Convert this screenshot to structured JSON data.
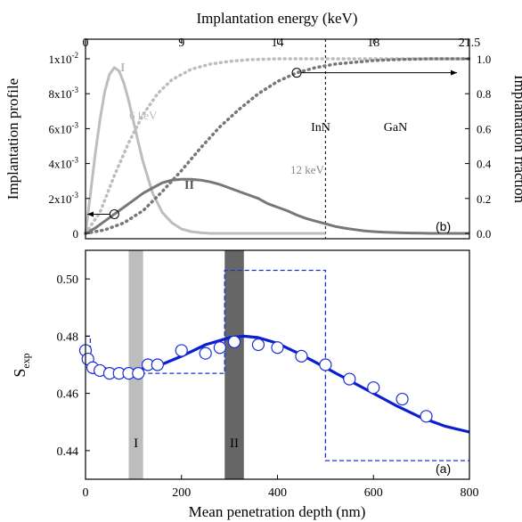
{
  "chart_data": [
    {
      "panel": "b",
      "type": "line",
      "panel_label": "(b)",
      "top_axis_label": "Implantation energy (keV)",
      "top_ticks": [
        "0",
        "9",
        "14",
        "18",
        "21.5"
      ],
      "ylabel": "Implantation profile",
      "ylabel_right": "Implantation fraction",
      "ylim": [
        0,
        0.01
      ],
      "ylim_right": [
        0,
        1
      ],
      "xlim": [
        0,
        800
      ],
      "left_ticks": [
        {
          "mant": "0",
          "exp": ""
        },
        {
          "mant": "2x10",
          "exp": "-3"
        },
        {
          "mant": "4x10",
          "exp": "-3"
        },
        {
          "mant": "6x10",
          "exp": "-3"
        },
        {
          "mant": "8x10",
          "exp": "-3"
        },
        {
          "mant": "1x10",
          "exp": "-2"
        }
      ],
      "right_ticks": [
        "0.0",
        "0.2",
        "0.4",
        "0.6",
        "0.8",
        "1.0"
      ],
      "region_labels": [
        "InN",
        "GaN"
      ],
      "interface_depth": 500,
      "series": [
        {
          "name": "I",
          "energy_label": "6 keV",
          "style": "solid",
          "color": "#bdbdbd",
          "x": [
            0,
            10,
            20,
            30,
            40,
            50,
            60,
            70,
            80,
            90,
            100,
            110,
            120,
            140,
            160,
            180,
            200,
            220,
            240,
            260,
            280,
            300,
            340,
            400,
            500
          ],
          "y": [
            0,
            0.0022,
            0.0045,
            0.0065,
            0.0081,
            0.0091,
            0.0095,
            0.0093,
            0.0086,
            0.0076,
            0.0064,
            0.0052,
            0.0041,
            0.0023,
            0.0012,
            0.0006,
            0.00025,
            0.0001,
            4e-05,
            0,
            0,
            0,
            0,
            0,
            0
          ]
        },
        {
          "name": "II",
          "energy_label": "12 keV",
          "style": "solid",
          "color": "#777777",
          "x": [
            0,
            20,
            40,
            60,
            80,
            100,
            120,
            140,
            160,
            180,
            200,
            220,
            240,
            260,
            280,
            300,
            320,
            340,
            360,
            380,
            400,
            420,
            440,
            460,
            480,
            500,
            520,
            540,
            560,
            580,
            600,
            620,
            640,
            660,
            680,
            700,
            720,
            740,
            760,
            780,
            800
          ],
          "y": [
            0,
            0.0003,
            0.0007,
            0.0011,
            0.0015,
            0.0019,
            0.0023,
            0.0026,
            0.0029,
            0.00305,
            0.0031,
            0.0031,
            0.00305,
            0.00295,
            0.0028,
            0.0026,
            0.0024,
            0.0022,
            0.002,
            0.0017,
            0.0015,
            0.0013,
            0.00105,
            0.00085,
            0.0007,
            0.00055,
            0.0004,
            0.0003,
            0.00022,
            0.00015,
            0.0001,
            7e-05,
            5e-05,
            3e-05,
            2e-05,
            1e-05,
            0,
            0,
            0,
            0,
            0
          ]
        },
        {
          "name": "6 keV fraction",
          "style": "dotted",
          "color": "#bdbdbd",
          "axis": "right",
          "x": [
            0,
            30,
            60,
            90,
            120,
            150,
            180,
            220,
            260,
            300,
            340,
            400,
            500,
            800
          ],
          "y": [
            0,
            0.12,
            0.33,
            0.52,
            0.68,
            0.8,
            0.88,
            0.94,
            0.97,
            0.985,
            0.995,
            1.0,
            1.0,
            1.0
          ]
        },
        {
          "name": "12 keV fraction",
          "style": "dotted",
          "color": "#777777",
          "axis": "right",
          "x": [
            0,
            40,
            80,
            120,
            160,
            200,
            240,
            280,
            320,
            360,
            400,
            440,
            480,
            520,
            560,
            600,
            640,
            680,
            720,
            760,
            800
          ],
          "y": [
            0,
            0.02,
            0.06,
            0.13,
            0.24,
            0.36,
            0.49,
            0.61,
            0.71,
            0.8,
            0.87,
            0.92,
            0.95,
            0.97,
            0.98,
            0.99,
            0.995,
            0.998,
            1.0,
            1.0,
            1.0
          ]
        }
      ]
    },
    {
      "panel": "a",
      "type": "scatter",
      "panel_label": "(a)",
      "xlabel": "Mean penetration depth (nm)",
      "ylabel": "S",
      "ylabel_sub": "exp",
      "xlim": [
        0,
        800
      ],
      "ylim": [
        0.43,
        0.51
      ],
      "xticks": [
        0,
        200,
        400,
        600,
        800
      ],
      "yticks": [
        "0.44",
        "0.46",
        "0.48",
        "0.50"
      ],
      "bands": [
        {
          "label": "I",
          "x": [
            90,
            120
          ],
          "color": "#bdbdbd"
        },
        {
          "label": "II",
          "x": [
            290,
            330
          ],
          "color": "#666666"
        }
      ],
      "points": {
        "x": [
          0,
          5,
          15,
          30,
          50,
          70,
          90,
          110,
          130,
          150,
          200,
          250,
          280,
          310,
          360,
          400,
          450,
          500,
          550,
          600,
          660,
          710
        ],
        "y": [
          0.475,
          0.472,
          0.469,
          0.468,
          0.467,
          0.467,
          0.467,
          0.467,
          0.47,
          0.47,
          0.475,
          0.474,
          0.476,
          0.478,
          0.477,
          0.476,
          0.473,
          0.47,
          0.465,
          0.462,
          0.458,
          0.452
        ]
      },
      "fit": {
        "x": [
          0,
          10,
          30,
          60,
          100,
          150,
          200,
          250,
          300,
          330,
          360,
          400,
          450,
          500,
          550,
          600,
          650,
          700,
          750,
          800
        ],
        "y": [
          0.475,
          0.471,
          0.469,
          0.468,
          0.468,
          0.4695,
          0.473,
          0.477,
          0.4795,
          0.48,
          0.4795,
          0.4775,
          0.4735,
          0.469,
          0.4645,
          0.46,
          0.4555,
          0.4515,
          0.4485,
          0.4465
        ]
      },
      "step_profile": {
        "x": [
          0,
          0,
          10,
          10,
          290,
          290,
          500,
          500,
          800
        ],
        "y": [
          0.48,
          0.48,
          0.48,
          0.467,
          0.467,
          0.503,
          0.503,
          0.4365,
          0.4365
        ]
      }
    }
  ]
}
